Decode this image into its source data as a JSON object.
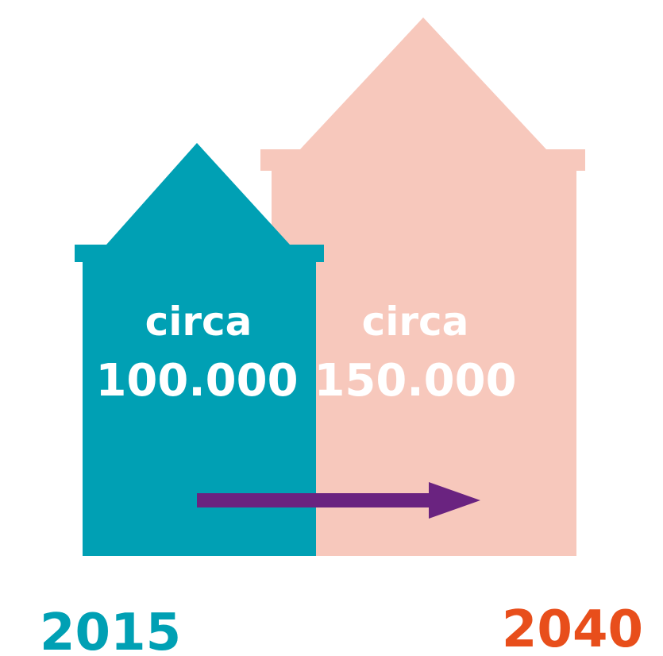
{
  "houses": [
    {
      "label": "circa",
      "value": "100.000",
      "year": "2015"
    },
    {
      "label": "circa",
      "value": "150.000",
      "year": "2040"
    }
  ]
}
